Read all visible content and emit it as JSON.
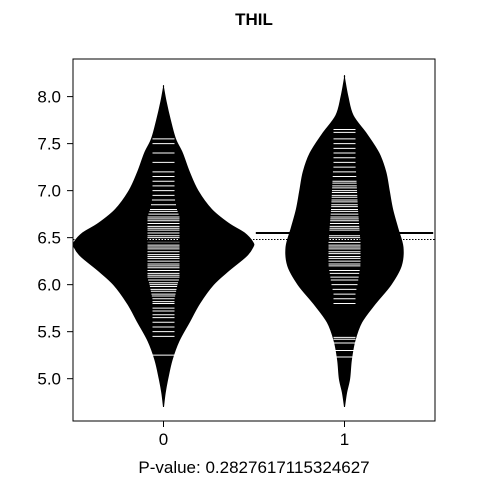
{
  "chart_data": {
    "type": "beanplot",
    "title": "THIL",
    "xlabel": "P-value: 0.2827617115324627",
    "ylabel": "",
    "categories": [
      "0",
      "1"
    ],
    "xlim": [
      -0.5,
      1.5
    ],
    "ylim": [
      4.55,
      8.4
    ],
    "yticks": [
      5.0,
      5.5,
      6.0,
      6.5,
      7.0,
      7.5,
      8.0
    ],
    "ytick_labels": [
      "5.0",
      "5.5",
      "6.0",
      "6.5",
      "7.0",
      "7.5",
      "8.0"
    ],
    "overall_mean": 6.48,
    "grid": false,
    "legend": "none",
    "colors": {
      "bean_fill": "#000000",
      "bean_lines": "#ffffff",
      "mean_line": "#000000",
      "background": "#ffffff"
    },
    "series": [
      {
        "category": "0",
        "mean": 6.44,
        "density": [
          [
            4.7,
            0.0
          ],
          [
            4.85,
            0.01
          ],
          [
            5.0,
            0.025
          ],
          [
            5.2,
            0.05
          ],
          [
            5.4,
            0.09
          ],
          [
            5.6,
            0.15
          ],
          [
            5.8,
            0.21
          ],
          [
            6.0,
            0.29
          ],
          [
            6.15,
            0.38
          ],
          [
            6.3,
            0.48
          ],
          [
            6.4,
            0.52
          ],
          [
            6.45,
            0.52
          ],
          [
            6.55,
            0.47
          ],
          [
            6.65,
            0.38
          ],
          [
            6.8,
            0.28
          ],
          [
            7.0,
            0.2
          ],
          [
            7.2,
            0.15
          ],
          [
            7.4,
            0.11
          ],
          [
            7.55,
            0.07
          ],
          [
            7.75,
            0.04
          ],
          [
            7.95,
            0.015
          ],
          [
            8.1,
            0.0
          ]
        ],
        "observations": [
          5.25,
          5.45,
          5.5,
          5.55,
          5.6,
          5.65,
          5.68,
          5.72,
          5.75,
          5.8,
          5.82,
          5.85,
          5.88,
          5.9,
          5.93,
          5.95,
          5.98,
          6.0,
          6.02,
          6.05,
          6.08,
          6.1,
          6.12,
          6.15,
          6.18,
          6.2,
          6.22,
          6.25,
          6.28,
          6.3,
          6.32,
          6.35,
          6.38,
          6.4,
          6.42,
          6.45,
          6.48,
          6.5,
          6.52,
          6.55,
          6.58,
          6.6,
          6.62,
          6.65,
          6.68,
          6.7,
          6.72,
          6.75,
          6.78,
          6.8,
          6.85,
          6.9,
          6.95,
          7.0,
          7.05,
          7.1,
          7.15,
          7.2,
          7.3,
          7.4,
          7.5,
          7.55
        ]
      },
      {
        "category": "1",
        "mean": 6.55,
        "density": [
          [
            4.7,
            0.0
          ],
          [
            4.85,
            0.012
          ],
          [
            5.0,
            0.03
          ],
          [
            5.2,
            0.04
          ],
          [
            5.4,
            0.06
          ],
          [
            5.6,
            0.1
          ],
          [
            5.8,
            0.18
          ],
          [
            6.0,
            0.27
          ],
          [
            6.2,
            0.33
          ],
          [
            6.4,
            0.34
          ],
          [
            6.6,
            0.31
          ],
          [
            6.8,
            0.28
          ],
          [
            7.0,
            0.26
          ],
          [
            7.2,
            0.24
          ],
          [
            7.4,
            0.2
          ],
          [
            7.6,
            0.13
          ],
          [
            7.8,
            0.05
          ],
          [
            8.0,
            0.02
          ],
          [
            8.2,
            0.0
          ]
        ],
        "observations": [
          5.23,
          5.3,
          5.38,
          5.42,
          5.44,
          5.8,
          5.85,
          5.9,
          5.95,
          6.0,
          6.05,
          6.08,
          6.12,
          6.15,
          6.2,
          6.22,
          6.25,
          6.28,
          6.3,
          6.33,
          6.35,
          6.38,
          6.4,
          6.42,
          6.45,
          6.48,
          6.5,
          6.52,
          6.55,
          6.58,
          6.6,
          6.62,
          6.65,
          6.68,
          6.7,
          6.72,
          6.75,
          6.78,
          6.8,
          6.83,
          6.85,
          6.88,
          6.9,
          6.93,
          6.95,
          6.98,
          7.0,
          7.03,
          7.05,
          7.08,
          7.1,
          7.15,
          7.2,
          7.25,
          7.3,
          7.35,
          7.4,
          7.45,
          7.5,
          7.55,
          7.62,
          7.65
        ]
      }
    ]
  }
}
